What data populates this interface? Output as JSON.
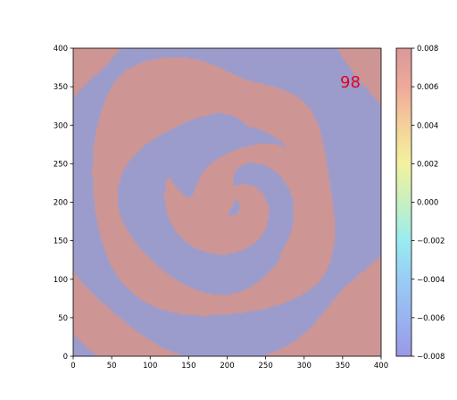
{
  "chart_data": {
    "type": "heatmap",
    "title": "",
    "xlabel": "",
    "ylabel": "",
    "xlim": [
      0,
      400
    ],
    "ylim": [
      0,
      400
    ],
    "x_ticks": [
      0,
      50,
      100,
      150,
      200,
      250,
      300,
      350,
      400
    ],
    "y_ticks": [
      0,
      50,
      100,
      150,
      200,
      250,
      300,
      350,
      400
    ],
    "x_tick_labels": [
      "0",
      "50",
      "100",
      "150",
      "200",
      "250",
      "300",
      "350",
      "400"
    ],
    "y_tick_labels": [
      "0",
      "50",
      "100",
      "150",
      "200",
      "250",
      "300",
      "350",
      "400"
    ],
    "annotation": {
      "text": "98",
      "x": 360,
      "y": 355,
      "color": "#e8001c"
    },
    "field_description": "two-valued wave-interference pattern with concentric rings and a swirl centered near (210, 205)",
    "observed_values": [
      -0.008,
      0.008
    ],
    "colorbar": {
      "colormap": "jet",
      "alpha": 0.4,
      "range": [
        -0.008,
        0.008
      ],
      "ticks": [
        -0.008,
        -0.006,
        -0.004,
        -0.002,
        0.0,
        0.002,
        0.004,
        0.006,
        0.008
      ],
      "tick_labels": [
        "−0.008",
        "−0.006",
        "−0.004",
        "−0.002",
        "0.000",
        "0.002",
        "0.004",
        "0.006",
        "0.008"
      ]
    },
    "colors": {
      "high": "#cd9695",
      "low": "#9c9ccc"
    },
    "grid": false
  }
}
